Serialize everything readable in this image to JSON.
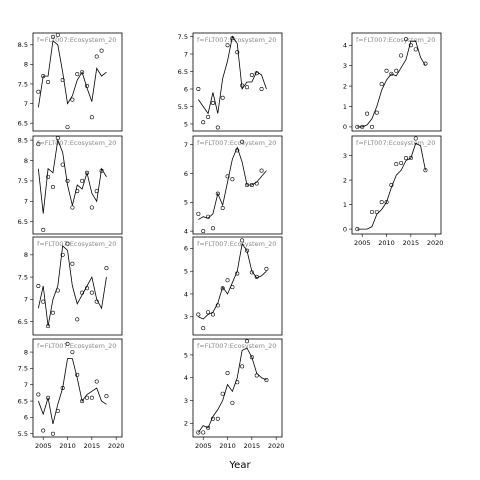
{
  "xlabel": "Year",
  "chart_data": [
    {
      "type": "scatter-fit",
      "label": "f=FLT007:Ecosystem_20",
      "xlim": [
        2002.9,
        2021.2
      ],
      "ylim": [
        6.3,
        8.8
      ],
      "yticks": [
        6.5,
        7,
        7.5,
        8,
        8.5
      ],
      "x": [
        2004,
        2005,
        2006,
        2007,
        2008,
        2009,
        2010,
        2011,
        2012,
        2013,
        2014,
        2015,
        2016,
        2017,
        2018
      ],
      "series": [
        {
          "style": "points",
          "color": "#000000",
          "values": [
            7.3,
            7.7,
            7.55,
            8.7,
            8.75,
            7.6,
            6.4,
            7.1,
            7.75,
            7.8,
            7.45,
            6.65,
            8.2,
            8.35,
            null
          ]
        },
        {
          "style": "line",
          "color": "#000000",
          "values": [
            6.9,
            7.7,
            7.7,
            8.6,
            8.5,
            7.8,
            7.0,
            7.2,
            7.6,
            7.8,
            7.4,
            7.05,
            7.9,
            7.7,
            7.8
          ]
        }
      ]
    },
    {
      "type": "scatter-fit",
      "label": "f=FLT007:Ecosystem_20",
      "xlim": [
        2002.9,
        2021.2
      ],
      "ylim": [
        4.8,
        7.6
      ],
      "yticks": [
        5,
        5.5,
        6,
        6.5,
        7,
        7.5
      ],
      "x": [
        2004,
        2005,
        2006,
        2007,
        2008,
        2009,
        2010,
        2011,
        2012,
        2013,
        2014,
        2015,
        2016,
        2017,
        2018
      ],
      "series": [
        {
          "style": "points",
          "color": "#000000",
          "values": [
            6.0,
            5.05,
            5.2,
            5.6,
            4.9,
            5.75,
            7.25,
            7.45,
            7.05,
            6.1,
            6.05,
            6.4,
            6.45,
            6.0,
            null
          ]
        },
        {
          "style": "line",
          "color": "#000000",
          "values": [
            5.7,
            5.5,
            5.3,
            5.9,
            5.3,
            6.3,
            6.8,
            7.5,
            7.3,
            6.0,
            6.2,
            6.2,
            6.5,
            6.4,
            6.0
          ]
        }
      ]
    },
    {
      "type": "scatter-fit",
      "label": "f=FLT007:Ecosystem_20",
      "xlim": [
        2002.9,
        2021.2
      ],
      "ylim": [
        -0.2,
        4.6
      ],
      "yticks": [
        0,
        1,
        2,
        3,
        4
      ],
      "x": [
        2004,
        2005,
        2006,
        2007,
        2008,
        2009,
        2010,
        2011,
        2012,
        2013,
        2014,
        2015,
        2016,
        2017,
        2018
      ],
      "series": [
        {
          "style": "points",
          "color": "#000000",
          "values": [
            0.0,
            0.0,
            0.65,
            0.0,
            0.7,
            2.1,
            2.75,
            2.6,
            2.75,
            3.5,
            4.3,
            4.0,
            3.8,
            null,
            3.1
          ]
        },
        {
          "style": "line",
          "color": "#000000",
          "values": [
            0.0,
            0.0,
            0.1,
            0.4,
            1.0,
            1.8,
            2.3,
            2.6,
            2.5,
            2.9,
            3.3,
            4.2,
            4.2,
            3.4,
            3.0
          ]
        }
      ]
    },
    {
      "type": "scatter-fit",
      "label": "f=FLT007:Ecosystem_20",
      "xlim": [
        2002.9,
        2021.2
      ],
      "ylim": [
        6.2,
        8.6
      ],
      "yticks": [
        6.5,
        7,
        7.5,
        8,
        8.5
      ],
      "x": [
        2004,
        2005,
        2006,
        2007,
        2008,
        2009,
        2010,
        2011,
        2012,
        2013,
        2014,
        2015,
        2016,
        2017,
        2018
      ],
      "series": [
        {
          "style": "points",
          "color": "#000000",
          "values": [
            8.4,
            6.3,
            7.6,
            7.35,
            8.55,
            7.9,
            7.5,
            6.85,
            7.25,
            7.5,
            7.7,
            6.85,
            7.25,
            7.75,
            null
          ]
        },
        {
          "style": "line",
          "color": "#000000",
          "values": [
            7.8,
            6.7,
            7.8,
            7.7,
            8.5,
            8.2,
            7.4,
            6.9,
            7.4,
            7.3,
            7.7,
            7.2,
            7.0,
            7.8,
            7.6
          ]
        }
      ]
    },
    {
      "type": "scatter-fit",
      "label": "f=FLT007:Ecosystem_20",
      "xlim": [
        2002.9,
        2021.2
      ],
      "ylim": [
        3.9,
        7.3
      ],
      "yticks": [
        4,
        5,
        6,
        7
      ],
      "x": [
        2004,
        2005,
        2006,
        2007,
        2008,
        2009,
        2010,
        2011,
        2012,
        2013,
        2014,
        2015,
        2016,
        2017,
        2018
      ],
      "series": [
        {
          "style": "points",
          "color": "#000000",
          "values": [
            4.6,
            4.0,
            4.5,
            4.1,
            5.3,
            4.8,
            5.9,
            5.8,
            6.8,
            7.1,
            5.6,
            5.6,
            5.65,
            6.1,
            null
          ]
        },
        {
          "style": "line",
          "color": "#000000",
          "values": [
            4.4,
            4.5,
            4.45,
            4.6,
            5.3,
            4.9,
            5.7,
            6.5,
            6.9,
            6.4,
            5.6,
            5.6,
            5.7,
            5.9,
            6.1
          ]
        }
      ]
    },
    {
      "type": "scatter-fit",
      "label": "f=FLT007:Ecosystem_20",
      "xlim": [
        2002.9,
        2021.2
      ],
      "ylim": [
        -0.2,
        3.8
      ],
      "yticks": [
        0,
        1,
        2,
        3
      ],
      "xticks": [
        2005,
        2010,
        2015,
        2020
      ],
      "x": [
        2004,
        2005,
        2006,
        2007,
        2008,
        2009,
        2010,
        2011,
        2012,
        2013,
        2014,
        2015,
        2016,
        2017,
        2018
      ],
      "series": [
        {
          "style": "points",
          "color": "#000000",
          "values": [
            0.0,
            null,
            null,
            0.7,
            0.7,
            1.1,
            1.1,
            1.8,
            2.65,
            2.7,
            2.9,
            2.9,
            3.7,
            null,
            2.4
          ]
        },
        {
          "style": "line",
          "color": "#000000",
          "values": [
            0.0,
            0.0,
            0.0,
            0.1,
            0.6,
            0.8,
            1.1,
            1.7,
            2.2,
            2.4,
            2.8,
            2.9,
            3.5,
            3.4,
            2.4
          ]
        }
      ]
    },
    {
      "type": "scatter-fit",
      "label": "f=FLT007:Ecosystem_20",
      "xlim": [
        2002.9,
        2021.2
      ],
      "ylim": [
        6.2,
        8.4
      ],
      "yticks": [
        6.5,
        7,
        7.5,
        8
      ],
      "x": [
        2004,
        2005,
        2006,
        2007,
        2008,
        2009,
        2010,
        2011,
        2012,
        2013,
        2014,
        2015,
        2016,
        2017,
        2018
      ],
      "series": [
        {
          "style": "points",
          "color": "#000000",
          "values": [
            7.3,
            6.95,
            6.4,
            6.7,
            7.2,
            8.0,
            8.25,
            7.8,
            6.55,
            7.15,
            7.25,
            7.15,
            6.95,
            null,
            7.7
          ]
        },
        {
          "style": "line",
          "color": "#000000",
          "values": [
            6.8,
            7.3,
            6.4,
            7.0,
            7.3,
            8.2,
            8.1,
            7.3,
            6.9,
            7.1,
            7.3,
            7.5,
            7.0,
            6.8,
            7.5
          ]
        }
      ]
    },
    {
      "type": "scatter-fit",
      "label": "f=FLT007:Ecosystem_20",
      "xlim": [
        2002.9,
        2021.2
      ],
      "ylim": [
        2.2,
        6.5
      ],
      "yticks": [
        3,
        4,
        5,
        6
      ],
      "x": [
        2004,
        2005,
        2006,
        2007,
        2008,
        2009,
        2010,
        2011,
        2012,
        2013,
        2014,
        2015,
        2016,
        2017,
        2018
      ],
      "series": [
        {
          "style": "points",
          "color": "#000000",
          "values": [
            3.1,
            2.5,
            3.2,
            3.1,
            3.5,
            4.25,
            4.6,
            4.3,
            4.9,
            6.35,
            5.9,
            4.95,
            4.75,
            null,
            5.1
          ]
        },
        {
          "style": "line",
          "color": "#000000",
          "values": [
            3.0,
            2.9,
            3.1,
            3.2,
            3.6,
            4.3,
            4.0,
            4.5,
            5.0,
            6.2,
            5.9,
            5.0,
            4.7,
            4.8,
            5.0
          ]
        }
      ]
    },
    {
      "type": "scatter-fit",
      "label": "f=FLT007:Ecosystem_20",
      "xlim": [
        2002.9,
        2021.2
      ],
      "ylim": [
        5.4,
        8.4
      ],
      "yticks": [
        5.5,
        6,
        6.5,
        7,
        7.5,
        8
      ],
      "xticks": [
        2005,
        2010,
        2015,
        2020
      ],
      "x": [
        2004,
        2005,
        2006,
        2007,
        2008,
        2009,
        2010,
        2011,
        2012,
        2013,
        2014,
        2015,
        2016,
        2017,
        2018
      ],
      "series": [
        {
          "style": "points",
          "color": "#000000",
          "values": [
            6.7,
            5.6,
            6.6,
            5.5,
            6.2,
            6.9,
            8.25,
            8.0,
            7.3,
            6.5,
            6.6,
            6.6,
            7.1,
            null,
            6.65
          ]
        },
        {
          "style": "line",
          "color": "#000000",
          "values": [
            6.5,
            6.1,
            6.6,
            5.8,
            6.4,
            6.9,
            7.8,
            7.8,
            7.2,
            6.5,
            6.7,
            6.8,
            6.9,
            6.5,
            6.4
          ]
        }
      ]
    },
    {
      "type": "scatter-fit",
      "label": "f=FLT007:Ecosystem_20",
      "xlim": [
        2002.9,
        2021.2
      ],
      "ylim": [
        1.4,
        5.7
      ],
      "yticks": [
        2,
        3,
        4,
        5
      ],
      "xticks": [
        2005,
        2010,
        2015,
        2020
      ],
      "x": [
        2004,
        2005,
        2006,
        2007,
        2008,
        2009,
        2010,
        2011,
        2012,
        2013,
        2014,
        2015,
        2016,
        2017,
        2018
      ],
      "series": [
        {
          "style": "points",
          "color": "#000000",
          "values": [
            1.6,
            1.6,
            1.8,
            2.2,
            2.2,
            3.3,
            4.2,
            2.9,
            3.8,
            4.5,
            5.6,
            4.9,
            4.1,
            null,
            3.9
          ]
        },
        {
          "style": "line",
          "color": "#000000",
          "values": [
            1.6,
            1.9,
            1.8,
            2.3,
            2.6,
            3.0,
            3.7,
            3.4,
            4.0,
            5.2,
            5.3,
            4.9,
            4.2,
            4.0,
            3.9
          ]
        }
      ]
    }
  ]
}
